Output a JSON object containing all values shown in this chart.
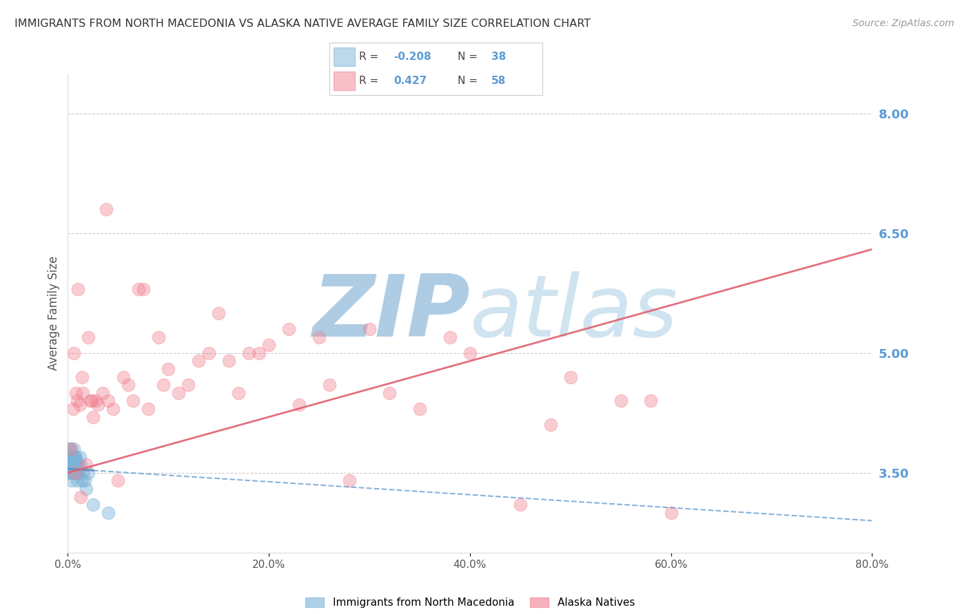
{
  "title": "IMMIGRANTS FROM NORTH MACEDONIA VS ALASKA NATIVE AVERAGE FAMILY SIZE CORRELATION CHART",
  "source": "Source: ZipAtlas.com",
  "ylabel": "Average Family Size",
  "yticks_right": [
    3.5,
    5.0,
    6.5,
    8.0
  ],
  "blue_R": -0.208,
  "blue_N": 38,
  "pink_R": 0.427,
  "pink_N": 58,
  "blue_label": "Immigrants from North Macedonia",
  "pink_label": "Alaska Natives",
  "blue_color": "#7ab3d9",
  "pink_color": "#f08090",
  "blue_line_color": "#5590c8",
  "pink_line_color": "#e06070",
  "background_color": "#ffffff",
  "title_color": "#333333",
  "right_axis_color": "#5b9bd5",
  "watermark_color": "#ccdded",
  "blue_scatter_x": [
    0.1,
    0.15,
    0.2,
    0.25,
    0.3,
    0.35,
    0.4,
    0.45,
    0.5,
    0.55,
    0.6,
    0.65,
    0.7,
    0.75,
    0.8,
    0.85,
    0.9,
    0.95,
    1.0,
    1.1,
    1.2,
    1.3,
    1.5,
    1.7,
    2.0,
    0.12,
    0.22,
    0.32,
    0.42,
    0.52,
    0.62,
    0.72,
    0.82,
    0.92,
    1.4,
    1.8,
    2.5,
    4.0
  ],
  "blue_scatter_y": [
    3.5,
    3.7,
    3.6,
    3.8,
    3.5,
    3.6,
    3.4,
    3.7,
    3.6,
    3.5,
    3.8,
    3.7,
    3.6,
    3.5,
    3.7,
    3.6,
    3.4,
    3.5,
    3.6,
    3.5,
    3.7,
    3.6,
    3.5,
    3.4,
    3.5,
    3.8,
    3.6,
    3.7,
    3.5,
    3.6,
    3.5,
    3.7,
    3.6,
    3.5,
    3.4,
    3.3,
    3.1,
    3.0
  ],
  "pink_scatter_x": [
    0.3,
    0.5,
    0.7,
    0.9,
    1.2,
    1.5,
    1.8,
    2.2,
    2.5,
    3.0,
    3.5,
    4.0,
    5.0,
    6.0,
    7.0,
    8.0,
    9.0,
    10.0,
    12.0,
    14.0,
    16.0,
    18.0,
    20.0,
    22.0,
    25.0,
    28.0,
    30.0,
    35.0,
    40.0,
    45.0,
    50.0,
    55.0,
    60.0,
    0.6,
    1.0,
    1.4,
    2.0,
    2.8,
    3.8,
    5.5,
    7.5,
    11.0,
    15.0,
    19.0,
    23.0,
    32.0,
    0.8,
    1.3,
    2.4,
    4.5,
    6.5,
    9.5,
    13.0,
    17.0,
    26.0,
    38.0,
    48.0,
    58.0
  ],
  "pink_scatter_y": [
    3.8,
    4.3,
    3.5,
    4.4,
    4.35,
    4.5,
    3.6,
    4.4,
    4.2,
    4.35,
    4.5,
    4.4,
    3.4,
    4.6,
    5.8,
    4.3,
    5.2,
    4.8,
    4.6,
    5.0,
    4.9,
    5.0,
    5.1,
    5.3,
    5.2,
    3.4,
    5.3,
    4.3,
    5.0,
    3.1,
    4.7,
    4.4,
    3.0,
    5.0,
    5.8,
    4.7,
    5.2,
    4.4,
    6.8,
    4.7,
    5.8,
    4.5,
    5.5,
    5.0,
    4.35,
    4.5,
    4.5,
    3.2,
    4.4,
    4.3,
    4.4,
    4.6,
    4.9,
    4.5,
    4.6,
    5.2,
    4.1,
    4.4
  ],
  "ylim": [
    2.5,
    8.5
  ],
  "xlim": [
    0,
    80
  ],
  "blue_line_x": [
    0,
    80
  ],
  "blue_line_y_start": 3.55,
  "blue_line_y_end": 2.9,
  "pink_line_x": [
    0,
    80
  ],
  "pink_line_y_start": 3.5,
  "pink_line_y_end": 6.3
}
